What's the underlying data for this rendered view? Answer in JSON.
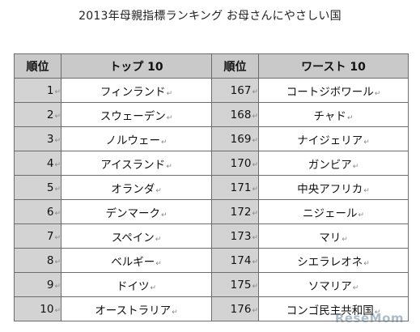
{
  "title": "2013年母親指標ランキング お母さんにやさしい国",
  "headers": {
    "rank": "順位",
    "top": "トップ 10",
    "worst": "ワースト 10"
  },
  "rows": [
    {
      "top_rank": "1",
      "top_name": "フィンランド",
      "worst_rank": "167",
      "worst_name": "コートジボワール"
    },
    {
      "top_rank": "2",
      "top_name": "スウェーデン",
      "worst_rank": "168",
      "worst_name": "チャド"
    },
    {
      "top_rank": "3",
      "top_name": "ノルウェー",
      "worst_rank": "169",
      "worst_name": "ナイジェリア"
    },
    {
      "top_rank": "4",
      "top_name": "アイスランド",
      "worst_rank": "170",
      "worst_name": "ガンビア"
    },
    {
      "top_rank": "5",
      "top_name": "オランダ",
      "worst_rank": "171",
      "worst_name": "中央アフリカ"
    },
    {
      "top_rank": "6",
      "top_name": "デンマーク",
      "worst_rank": "172",
      "worst_name": "ニジェール"
    },
    {
      "top_rank": "7",
      "top_name": "スペイン",
      "worst_rank": "173",
      "worst_name": "マリ"
    },
    {
      "top_rank": "8",
      "top_name": "ベルギー",
      "worst_rank": "174",
      "worst_name": "シエラレオネ"
    },
    {
      "top_rank": "9",
      "top_name": "ドイツ",
      "worst_rank": "175",
      "worst_name": "ソマリア"
    },
    {
      "top_rank": "10",
      "top_name": "オーストラリア",
      "worst_rank": "176",
      "worst_name": "コンゴ民主共和国"
    }
  ],
  "paragraph_mark": "↵",
  "watermark": "ReseMom"
}
